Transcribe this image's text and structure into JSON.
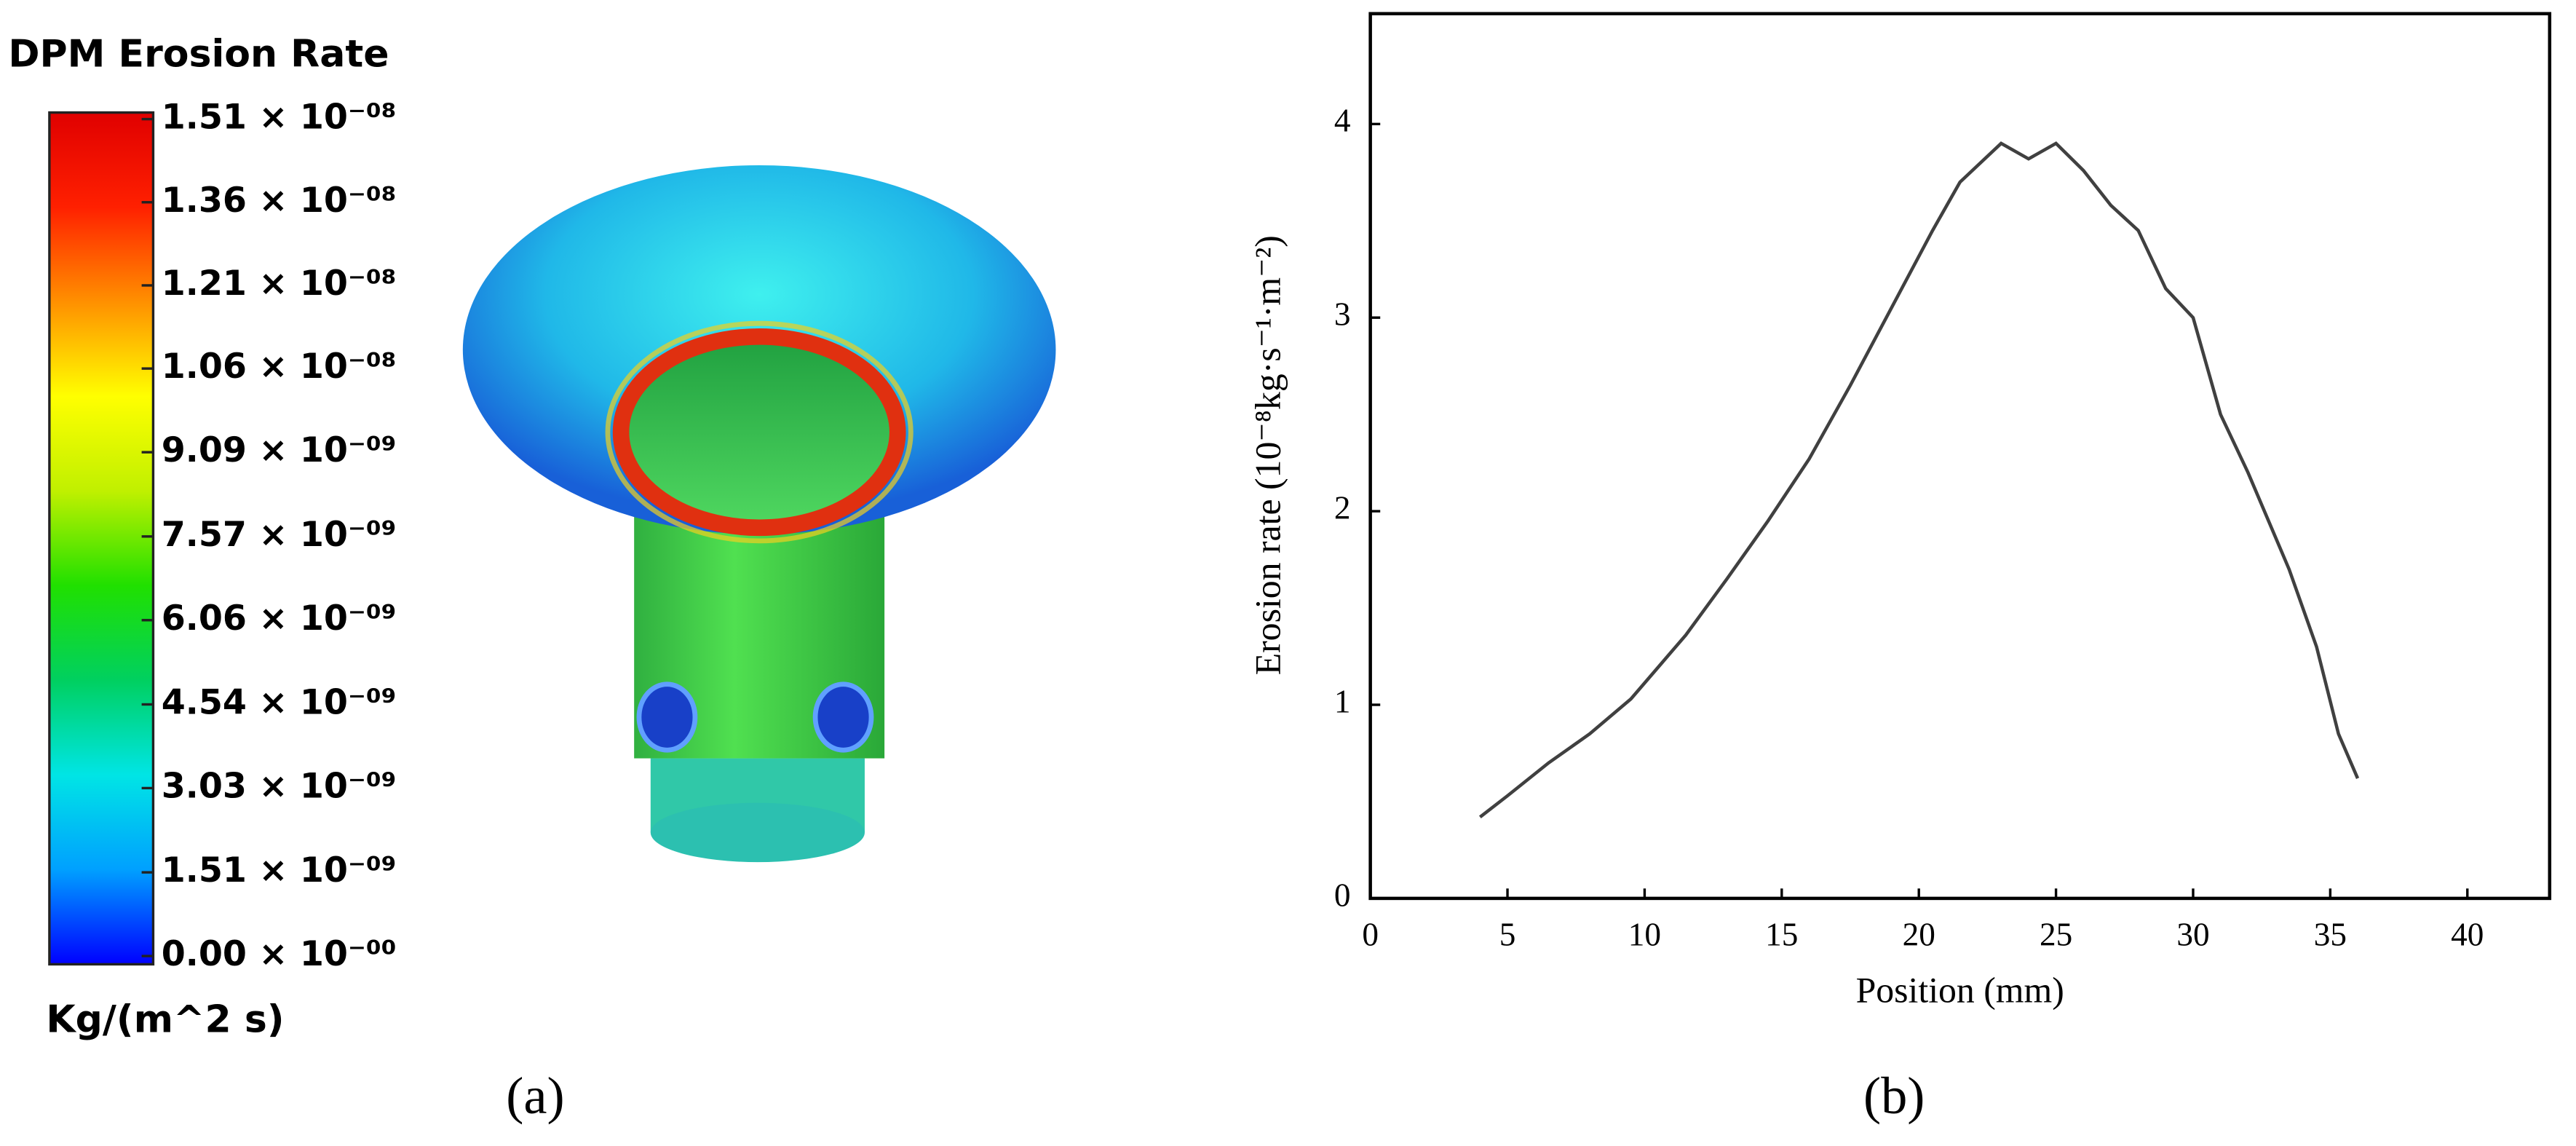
{
  "chart_data": [
    {
      "type": "colormap",
      "title": "DPM Erosion Rate",
      "unit": "Kg/(m^2 s)",
      "caption": "(a)",
      "clim": [
        0,
        1.51e-08
      ],
      "colors": [
        "#0000ff",
        "#00a0ff",
        "#00e5e5",
        "#00d060",
        "#20e000",
        "#c0f000",
        "#ffff00",
        "#ff9000",
        "#ff2000",
        "#e00000"
      ],
      "ticks": [
        {
          "value": 1.51e-08,
          "label": "1.51 × 10⁻⁰⁸"
        },
        {
          "value": 1.36e-08,
          "label": "1.36 × 10⁻⁰⁸"
        },
        {
          "value": 1.21e-08,
          "label": "1.21 × 10⁻⁰⁸"
        },
        {
          "value": 1.06e-08,
          "label": "1.06 × 10⁻⁰⁸"
        },
        {
          "value": 9.09e-09,
          "label": "9.09 × 10⁻⁰⁹"
        },
        {
          "value": 7.57e-09,
          "label": "7.57 × 10⁻⁰⁹"
        },
        {
          "value": 6.06e-09,
          "label": "6.06 × 10⁻⁰⁹"
        },
        {
          "value": 4.54e-09,
          "label": "4.54 × 10⁻⁰⁹"
        },
        {
          "value": 3.03e-09,
          "label": "3.03 × 10⁻⁰⁹"
        },
        {
          "value": 1.51e-09,
          "label": "1.51 × 10⁻⁰⁹"
        },
        {
          "value": 0,
          "label": "0.00 × 10⁻⁰⁰"
        }
      ]
    },
    {
      "type": "line",
      "caption": "(b)",
      "xlabel": "Position (mm)",
      "ylabel": "Erosion rate (10⁻⁸kg·s⁻¹·m⁻²)",
      "x": [
        4,
        5,
        6.5,
        8,
        9.5,
        11.5,
        13,
        14.5,
        16,
        17.5,
        19,
        20.5,
        21.5,
        23,
        24,
        25,
        26,
        27,
        28,
        29,
        30,
        31,
        32,
        33.5,
        34.5,
        35.3,
        36
      ],
      "values": [
        0.42,
        0.53,
        0.7,
        0.85,
        1.03,
        1.36,
        1.65,
        1.95,
        2.27,
        2.65,
        3.05,
        3.45,
        3.7,
        3.9,
        3.82,
        3.9,
        3.76,
        3.58,
        3.45,
        3.15,
        3.0,
        2.5,
        2.2,
        1.7,
        1.3,
        0.85,
        0.62
      ],
      "color": "#404040",
      "xlim": [
        0,
        43
      ],
      "ylim": [
        0,
        4.57
      ],
      "xticks": [
        0,
        5,
        10,
        15,
        20,
        25,
        30,
        35,
        40
      ],
      "yticks": [
        0,
        1,
        2,
        3,
        4
      ]
    }
  ]
}
